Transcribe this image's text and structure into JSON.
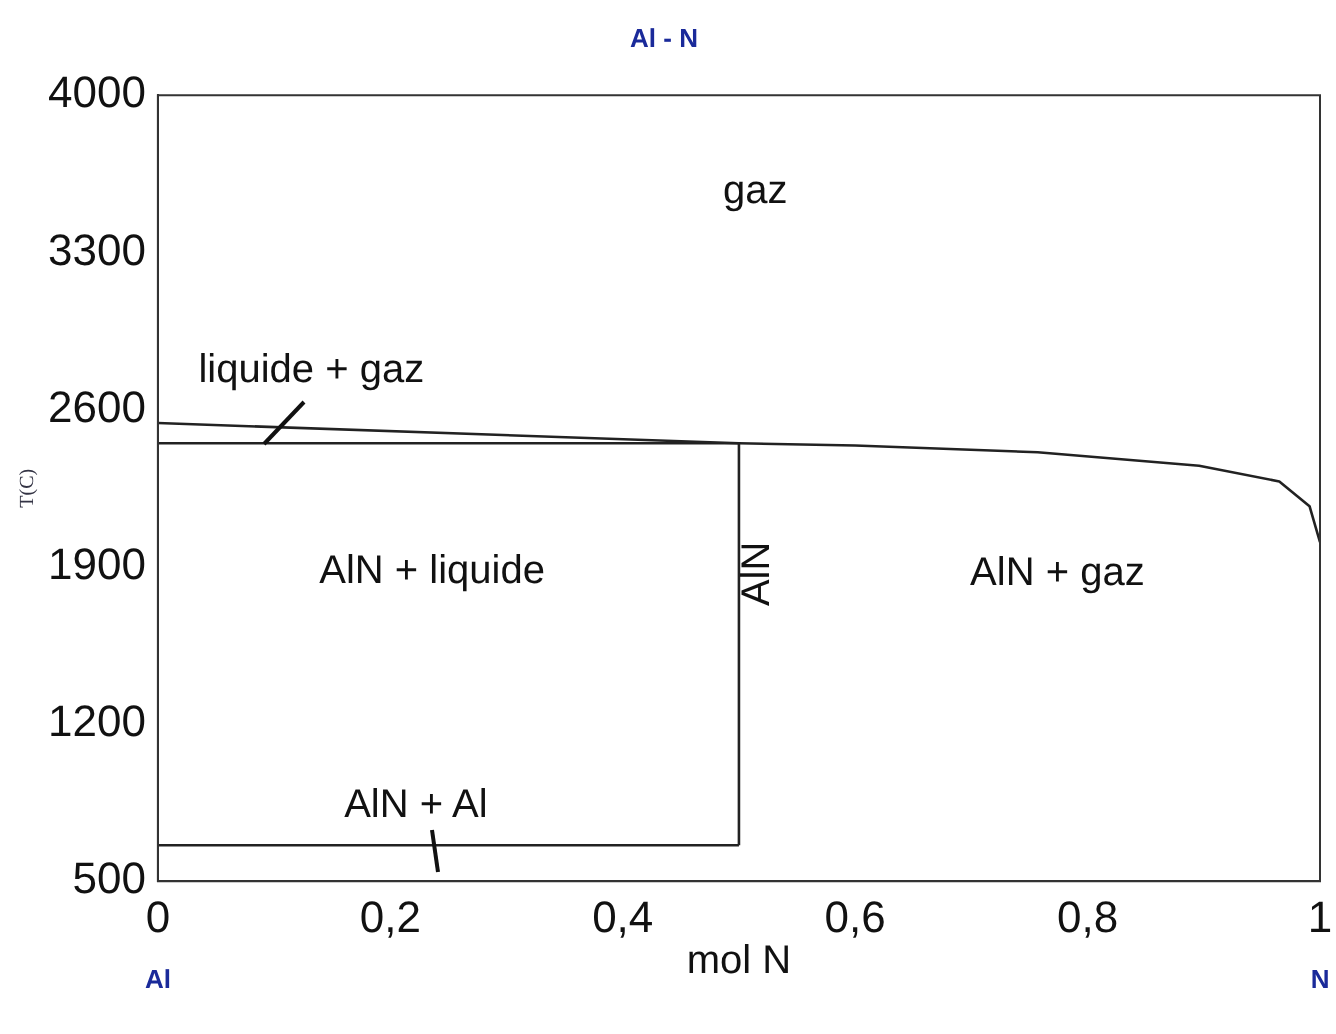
{
  "chart_data": {
    "type": "line",
    "title": "Al - N",
    "xlabel": "mol N",
    "ylabel": "T(C)",
    "xlim": [
      0,
      1
    ],
    "xticks": [
      0,
      {
        "value": 0.2,
        "label": "0,2"
      },
      {
        "value": 0.4,
        "label": "0,4"
      },
      {
        "value": 0.6,
        "label": "0,6"
      },
      {
        "value": 0.8,
        "label": "0,8"
      },
      1
    ],
    "ylim": [
      500,
      4000
    ],
    "yticks": [
      500,
      1200,
      1900,
      2600,
      3300,
      4000
    ],
    "grid": false,
    "legend": false,
    "marker": "none",
    "line_style": "solid",
    "series": [
      {
        "color": "#222222",
        "x": [
          0,
          0.5
        ],
        "values": [
          2540,
          2450
        ]
      },
      {
        "color": "#222222",
        "x": [
          0,
          0.5,
          0.6,
          0.757,
          0.896,
          0.965,
          0.991,
          1
        ],
        "values": [
          2450,
          2450,
          2440,
          2410,
          2350,
          2280,
          2170,
          2010
        ]
      },
      {
        "color": "#222222",
        "x": [
          0.5,
          0.5
        ],
        "values": [
          660,
          2450
        ]
      },
      {
        "color": "#222222",
        "x": [
          0,
          0.5
        ],
        "values": [
          660,
          660
        ]
      }
    ],
    "annotations": [
      "gaz",
      "liquide + gaz",
      "AlN + liquide",
      "AlN",
      "AlN + gaz",
      "AlN + Al",
      "Al",
      "N"
    ]
  }
}
